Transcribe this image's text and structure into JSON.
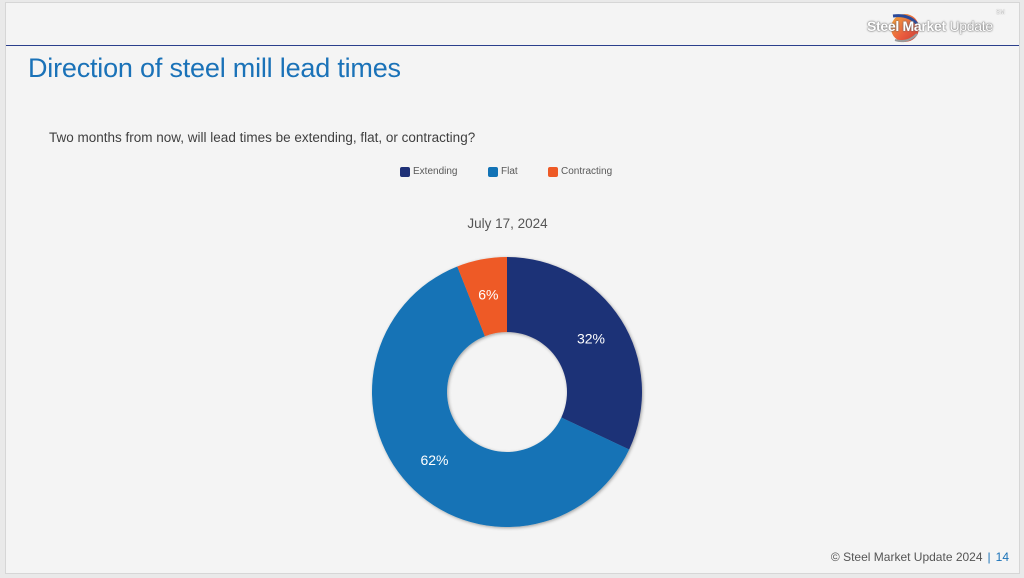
{
  "header": {
    "logo_text_bold": "Steel Market",
    "logo_text_light": "Update",
    "logo_mark": "SM"
  },
  "title": "Direction of steel mill lead times",
  "question": "Two months from now, will lead times be extending, flat, or contracting?",
  "chart_data": {
    "type": "pie",
    "subtype": "donut",
    "title": "July 17, 2024",
    "categories": [
      "Extending",
      "Flat",
      "Contracting"
    ],
    "values": [
      32,
      62,
      6
    ],
    "labels": [
      "32%",
      "62%",
      "6%"
    ],
    "colors": [
      "#1f3177",
      "#1273b6",
      "#ee5a26"
    ],
    "legend": "top",
    "start_angle": "12 o'clock",
    "direction": "clockwise"
  },
  "footer": {
    "copyright": "© Steel Market Update 2024",
    "separator": "|",
    "page_number": "14"
  }
}
